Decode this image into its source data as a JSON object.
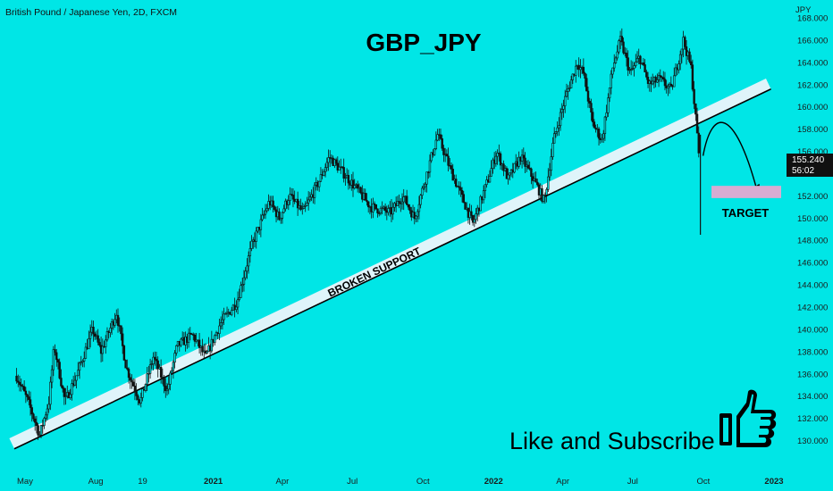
{
  "header": {
    "symbol_line": "British Pound / Japanese Yen, 2D, FXCM"
  },
  "chart_data": {
    "type": "candlestick",
    "title": "GBP_JPY",
    "y_unit": "JPY",
    "ylim": [
      129.0,
      168.0
    ],
    "y_ticks": [
      {
        "value": 130,
        "label": "130.000"
      },
      {
        "value": 132,
        "label": "132.000"
      },
      {
        "value": 134,
        "label": "134.000"
      },
      {
        "value": 136,
        "label": "136.000"
      },
      {
        "value": 138,
        "label": "138.000"
      },
      {
        "value": 140,
        "label": "140.000"
      },
      {
        "value": 142,
        "label": "142.000"
      },
      {
        "value": 144,
        "label": "144.000"
      },
      {
        "value": 146,
        "label": "146.000"
      },
      {
        "value": 148,
        "label": "148.000"
      },
      {
        "value": 150,
        "label": "150.000"
      },
      {
        "value": 152,
        "label": "152.000"
      },
      {
        "value": 156,
        "label": "156.000"
      },
      {
        "value": 158,
        "label": "158.000"
      },
      {
        "value": 160,
        "label": "160.000"
      },
      {
        "value": 162,
        "label": "162.000"
      },
      {
        "value": 164,
        "label": "164.000"
      },
      {
        "value": 166,
        "label": "166.000"
      },
      {
        "value": 168,
        "label": "168.000"
      }
    ],
    "x_ticks": [
      {
        "date": "2020-05-01",
        "label": "May",
        "bold": false
      },
      {
        "date": "2020-08-01",
        "label": "Aug",
        "bold": false
      },
      {
        "date": "2020-10-01",
        "label": "19",
        "bold": false
      },
      {
        "date": "2021-01-01",
        "label": "2021",
        "bold": true
      },
      {
        "date": "2021-04-01",
        "label": "Apr",
        "bold": false
      },
      {
        "date": "2021-07-01",
        "label": "Jul",
        "bold": false
      },
      {
        "date": "2021-10-01",
        "label": "Oct",
        "bold": false
      },
      {
        "date": "2022-01-01",
        "label": "2022",
        "bold": true
      },
      {
        "date": "2022-04-01",
        "label": "Apr",
        "bold": false
      },
      {
        "date": "2022-07-01",
        "label": "Jul",
        "bold": false
      },
      {
        "date": "2022-10-01",
        "label": "Oct",
        "bold": false
      },
      {
        "date": "2023-01-01",
        "label": "2023",
        "bold": true
      }
    ],
    "price_path": [
      {
        "date": "2020-04-20",
        "close": 135.8
      },
      {
        "date": "2020-05-05",
        "close": 133.5
      },
      {
        "date": "2020-05-20",
        "close": 130.5
      },
      {
        "date": "2020-06-01",
        "close": 133.5
      },
      {
        "date": "2020-06-08",
        "close": 138.5
      },
      {
        "date": "2020-06-22",
        "close": 133.5
      },
      {
        "date": "2020-07-08",
        "close": 136.0
      },
      {
        "date": "2020-07-28",
        "close": 140.0
      },
      {
        "date": "2020-08-08",
        "close": 138.0
      },
      {
        "date": "2020-08-28",
        "close": 141.5
      },
      {
        "date": "2020-09-10",
        "close": 136.5
      },
      {
        "date": "2020-09-28",
        "close": 133.5
      },
      {
        "date": "2020-10-15",
        "close": 137.5
      },
      {
        "date": "2020-11-02",
        "close": 134.5
      },
      {
        "date": "2020-11-15",
        "close": 138.5
      },
      {
        "date": "2020-12-05",
        "close": 139.5
      },
      {
        "date": "2020-12-22",
        "close": 137.5
      },
      {
        "date": "2021-01-10",
        "close": 140.5
      },
      {
        "date": "2021-02-01",
        "close": 142.5
      },
      {
        "date": "2021-02-20",
        "close": 147.5
      },
      {
        "date": "2021-03-15",
        "close": 151.5
      },
      {
        "date": "2021-03-28",
        "close": 150.0
      },
      {
        "date": "2021-04-10",
        "close": 152.0
      },
      {
        "date": "2021-04-28",
        "close": 150.5
      },
      {
        "date": "2021-05-20",
        "close": 153.5
      },
      {
        "date": "2021-06-01",
        "close": 155.5
      },
      {
        "date": "2021-06-20",
        "close": 154.0
      },
      {
        "date": "2021-07-08",
        "close": 152.5
      },
      {
        "date": "2021-07-25",
        "close": 151.0
      },
      {
        "date": "2021-08-20",
        "close": 150.5
      },
      {
        "date": "2021-09-05",
        "close": 152.0
      },
      {
        "date": "2021-09-20",
        "close": 150.0
      },
      {
        "date": "2021-10-10",
        "close": 155.0
      },
      {
        "date": "2021-10-20",
        "close": 157.5
      },
      {
        "date": "2021-11-05",
        "close": 154.5
      },
      {
        "date": "2021-11-20",
        "close": 152.0
      },
      {
        "date": "2021-12-05",
        "close": 149.5
      },
      {
        "date": "2021-12-25",
        "close": 153.5
      },
      {
        "date": "2022-01-05",
        "close": 156.0
      },
      {
        "date": "2022-01-20",
        "close": 153.5
      },
      {
        "date": "2022-02-05",
        "close": 155.5
      },
      {
        "date": "2022-02-22",
        "close": 153.5
      },
      {
        "date": "2022-03-08",
        "close": 151.5
      },
      {
        "date": "2022-03-20",
        "close": 157.0
      },
      {
        "date": "2022-04-05",
        "close": 161.0
      },
      {
        "date": "2022-04-20",
        "close": 164.0
      },
      {
        "date": "2022-04-28",
        "close": 163.0
      },
      {
        "date": "2022-05-10",
        "close": 158.5
      },
      {
        "date": "2022-05-22",
        "close": 157.0
      },
      {
        "date": "2022-06-05",
        "close": 163.5
      },
      {
        "date": "2022-06-15",
        "close": 166.0
      },
      {
        "date": "2022-06-28",
        "close": 163.0
      },
      {
        "date": "2022-07-10",
        "close": 164.5
      },
      {
        "date": "2022-07-22",
        "close": 162.0
      },
      {
        "date": "2022-08-05",
        "close": 162.5
      },
      {
        "date": "2022-08-20",
        "close": 161.5
      },
      {
        "date": "2022-09-05",
        "close": 166.0
      },
      {
        "date": "2022-09-15",
        "close": 163.5
      },
      {
        "date": "2022-09-26",
        "close": 155.24
      }
    ],
    "support_line": {
      "label": "BROKEN SUPPORT",
      "start": {
        "date": "2020-05-01",
        "value": 129.5
      },
      "end": {
        "date": "2022-12-28",
        "value": 161.6
      }
    },
    "last_price": {
      "value": 155.24,
      "label": "155.240",
      "countdown": "56:02"
    },
    "target": {
      "label": "TARGET",
      "from": 151.8,
      "to": 152.9
    }
  },
  "footer": {
    "cta_text": "Like and Subscribe"
  },
  "icons": {
    "cta_icon": "thumbs-up-icon"
  },
  "colors": {
    "background": "#00e6e6",
    "candle": "#111111",
    "support_band": "#dff4fa",
    "target_box": "#d8acd2",
    "price_tag": "#111111"
  }
}
